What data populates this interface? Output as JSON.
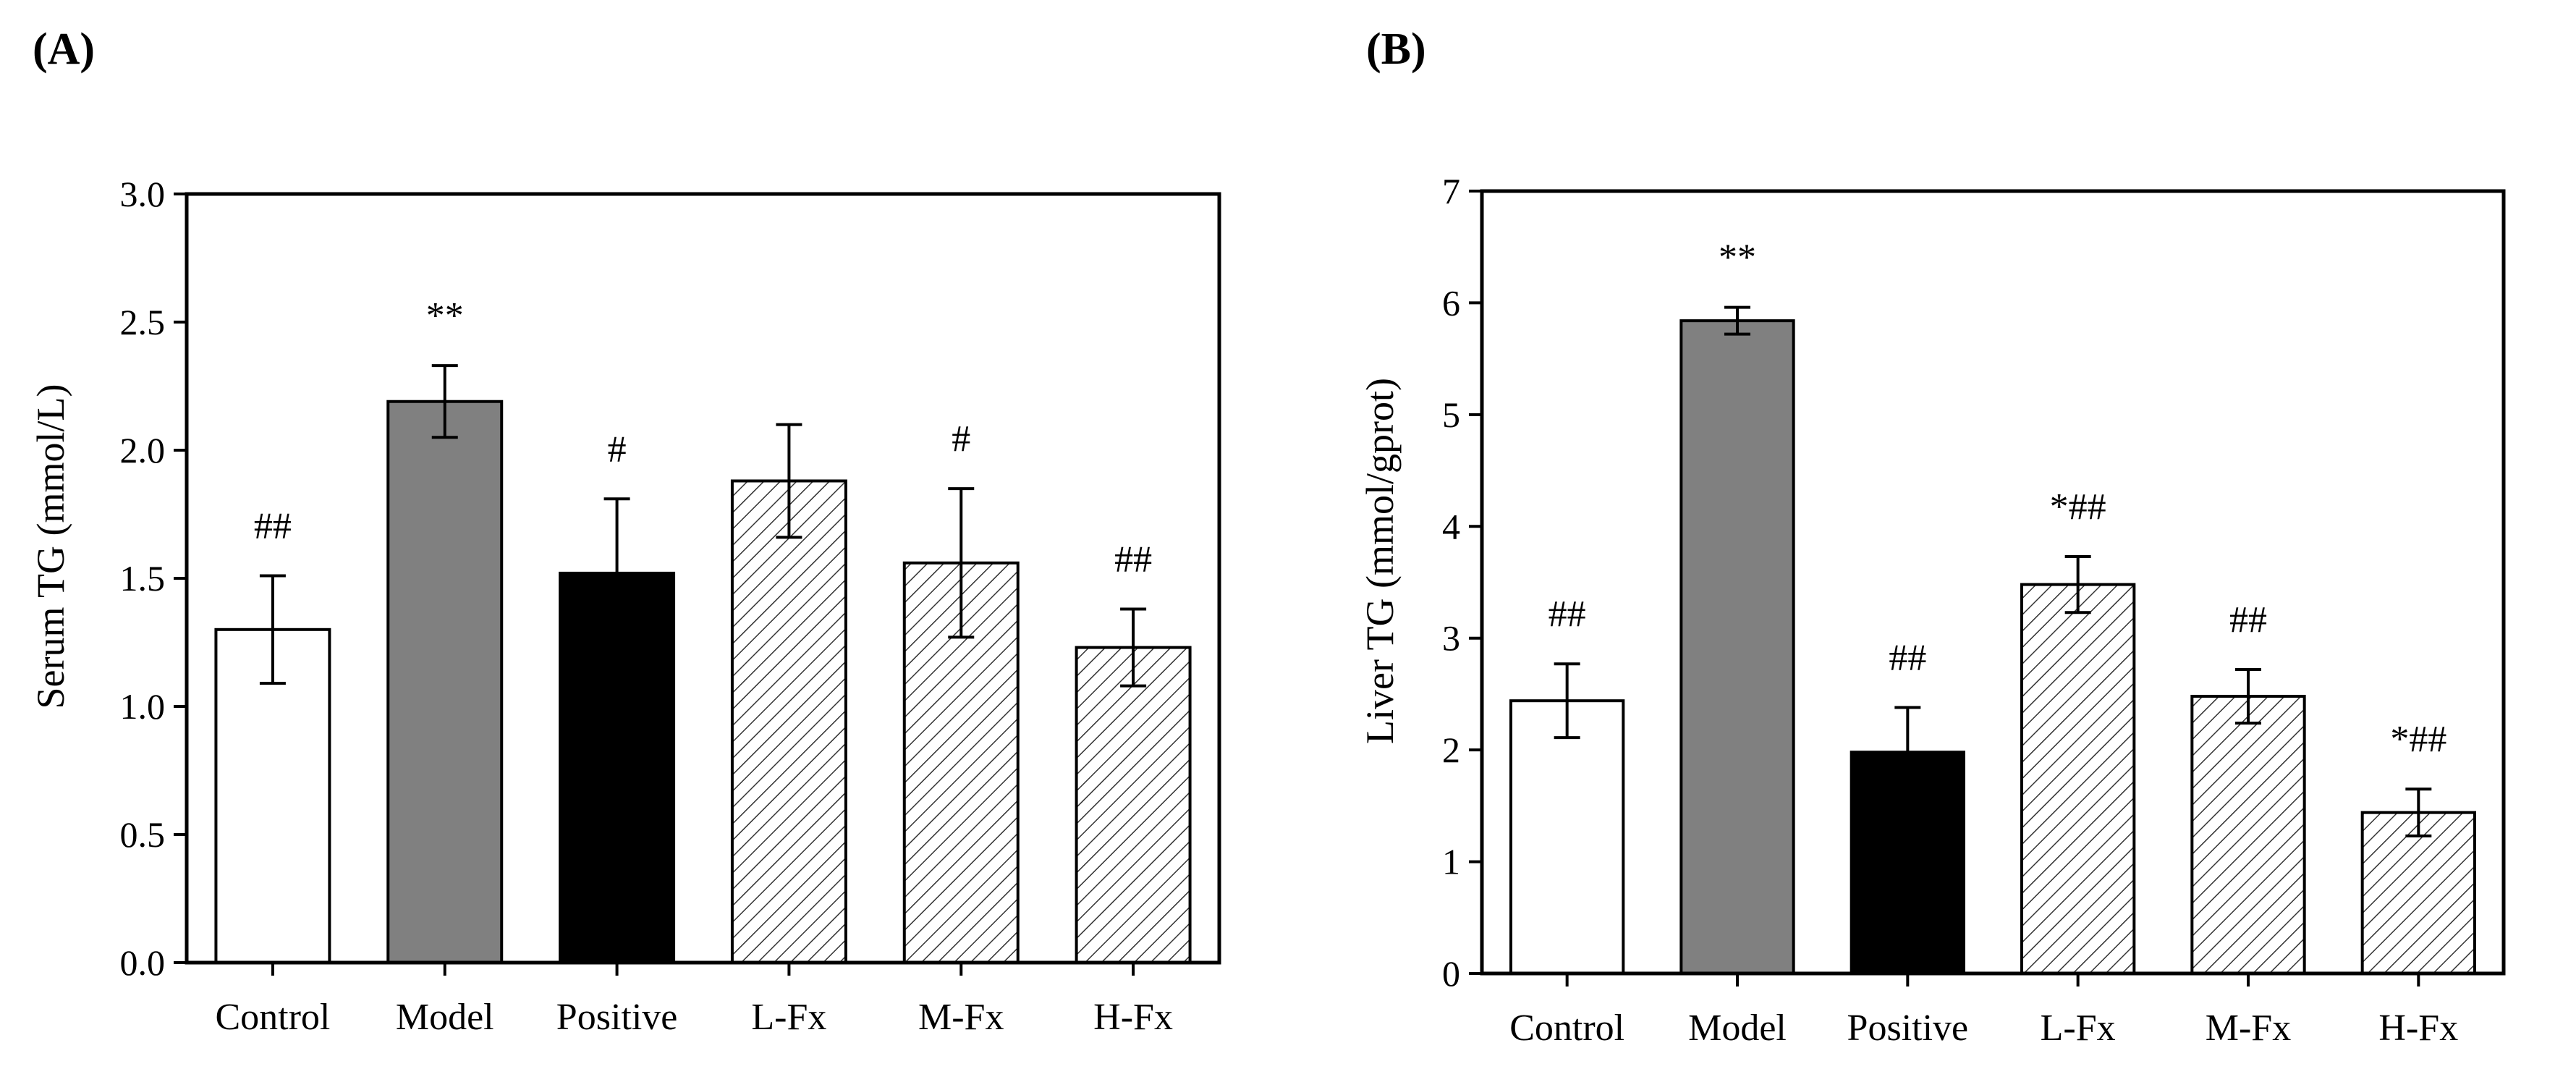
{
  "chart_data": [
    {
      "type": "bar",
      "panel_label": "(A)",
      "categories": [
        "Control",
        "Model",
        "Positive",
        "L-Fx",
        "M-Fx",
        "H-Fx"
      ],
      "values": [
        1.3,
        2.19,
        1.52,
        1.88,
        1.56,
        1.23
      ],
      "errors": [
        0.21,
        0.14,
        0.29,
        0.22,
        0.29,
        0.15
      ],
      "significance": [
        "##",
        "**",
        "#",
        "",
        "#",
        "##"
      ],
      "fill_styles": [
        "white",
        "gray",
        "black",
        "hatch",
        "hatch",
        "hatch"
      ],
      "title": "",
      "xlabel": "",
      "ylabel": "Serum TG (mmol/L)",
      "ylim": [
        0,
        3.0
      ],
      "yticks": [
        0.0,
        0.5,
        1.0,
        1.5,
        2.0,
        2.5,
        3.0
      ],
      "ytick_labels": [
        "0.0",
        "0.5",
        "1.0",
        "1.5",
        "2.0",
        "2.5",
        "3.0"
      ],
      "grid": false
    },
    {
      "type": "bar",
      "panel_label": "(B)",
      "categories": [
        "Control",
        "Model",
        "Positive",
        "L-Fx",
        "M-Fx",
        "H-Fx"
      ],
      "values": [
        2.44,
        5.84,
        1.98,
        3.48,
        2.48,
        1.44
      ],
      "errors": [
        0.33,
        0.12,
        0.4,
        0.25,
        0.24,
        0.21
      ],
      "significance": [
        "##",
        "**",
        "##",
        "*##",
        "##",
        "*##"
      ],
      "fill_styles": [
        "white",
        "gray",
        "black",
        "hatch",
        "hatch",
        "hatch"
      ],
      "title": "",
      "xlabel": "",
      "ylabel": "Liver TG (mmol/gprot)",
      "ylim": [
        0,
        7
      ],
      "yticks": [
        0,
        1,
        2,
        3,
        4,
        5,
        6,
        7
      ],
      "ytick_labels": [
        "0",
        "1",
        "2",
        "3",
        "4",
        "5",
        "6",
        "7"
      ],
      "grid": false
    }
  ],
  "colors": {
    "white": "#ffffff",
    "gray": "#808080",
    "black": "#000000",
    "hatch_line": "#333333",
    "axis": "#000000"
  }
}
